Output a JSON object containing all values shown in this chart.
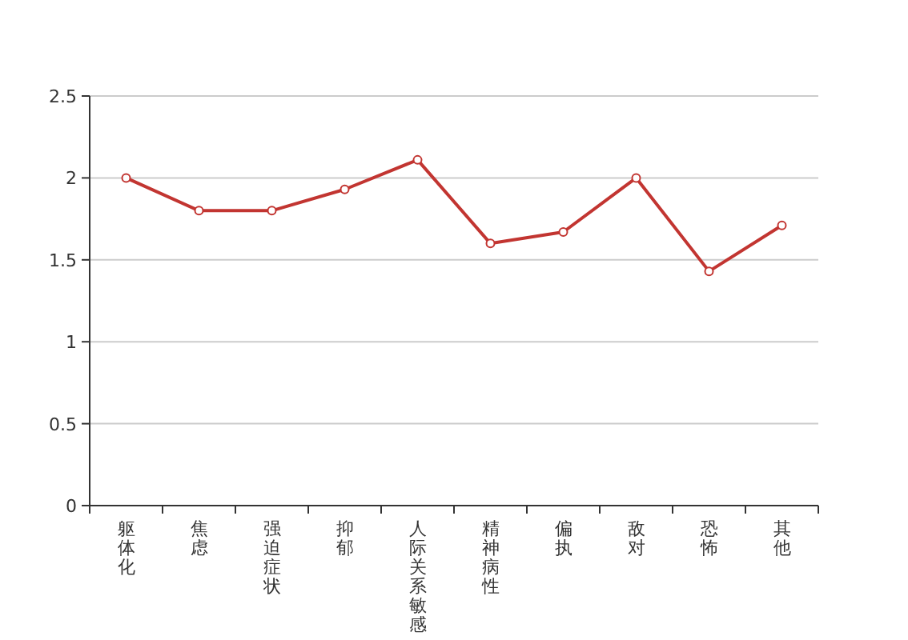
{
  "chart_data": {
    "type": "line",
    "categories": [
      "躯体化",
      "焦虑",
      "强迫症状",
      "抑郁",
      "人际关系敏感",
      "精神病性",
      "偏执",
      "敌对",
      "恐怖",
      "其他"
    ],
    "series": [
      {
        "color": "#c23531",
        "values": [
          2.0,
          1.8,
          1.8,
          1.93,
          2.11,
          1.6,
          1.67,
          2.0,
          1.43,
          1.71
        ]
      }
    ],
    "ylim": [
      0,
      2.5
    ],
    "yticks": [
      0,
      0.5,
      1,
      1.5,
      2,
      2.5
    ],
    "grid": "y",
    "marker": "circle",
    "line_style": "solid"
  }
}
